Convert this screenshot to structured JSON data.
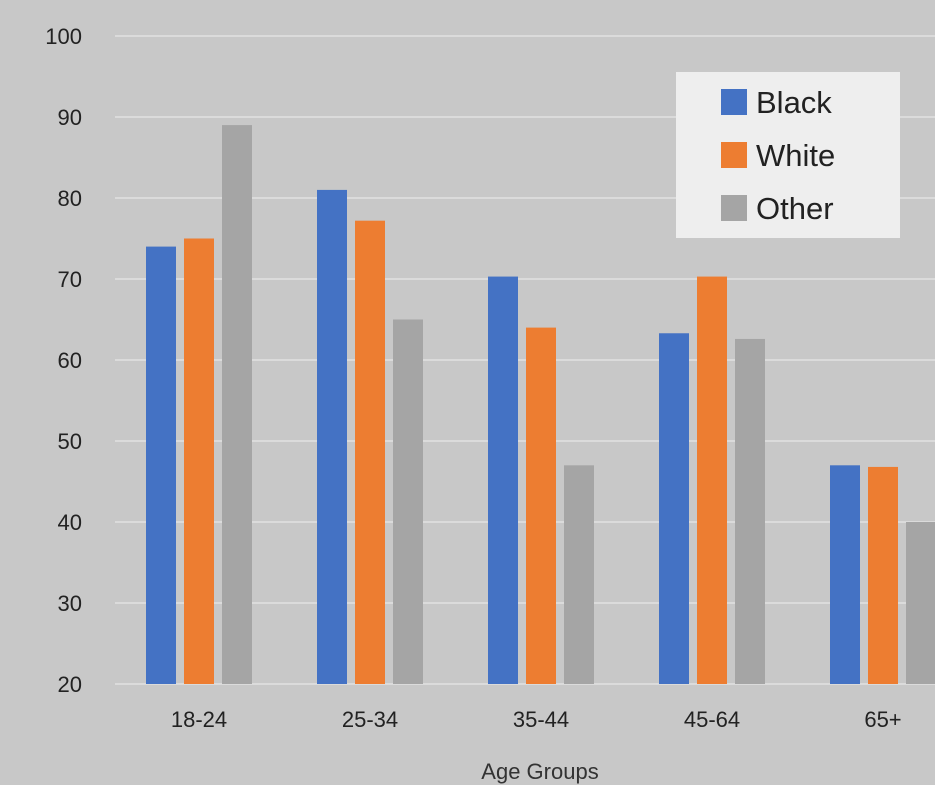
{
  "colors": {
    "background": "#c8c8c8",
    "gridline": "#e6e6e6",
    "legend_bg": "#eeeeee"
  },
  "chart_data": {
    "type": "bar",
    "title": "",
    "xlabel": "Age Groups",
    "ylabel": "",
    "categories": [
      "18-24",
      "25-34",
      "35-44",
      "45-64",
      "65+"
    ],
    "ylim": [
      20,
      100
    ],
    "yticks": [
      20,
      30,
      40,
      50,
      60,
      70,
      80,
      90,
      100
    ],
    "grid": true,
    "legend_position": "top-right",
    "series": [
      {
        "name": "Black",
        "color": "#4472c4",
        "values": [
          74,
          81,
          70.3,
          63.3,
          47
        ]
      },
      {
        "name": "White",
        "color": "#ed7d31",
        "values": [
          75,
          77.2,
          64,
          70.3,
          46.8
        ]
      },
      {
        "name": "Other",
        "color": "#a5a5a5",
        "values": [
          89,
          65,
          47,
          62.6,
          40
        ]
      }
    ]
  }
}
